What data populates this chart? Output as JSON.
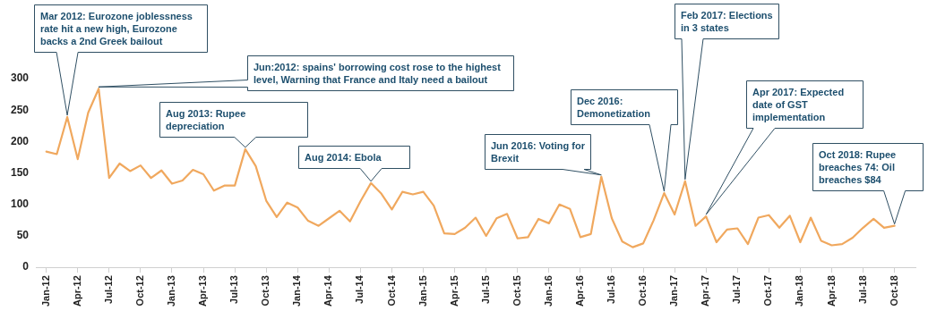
{
  "chart_data": {
    "type": "line",
    "x": [
      "2012-01",
      "2012-02",
      "2012-03",
      "2012-04",
      "2012-05",
      "2012-06",
      "2012-07",
      "2012-08",
      "2012-09",
      "2012-10",
      "2012-11",
      "2012-12",
      "2013-01",
      "2013-02",
      "2013-03",
      "2013-04",
      "2013-05",
      "2013-06",
      "2013-07",
      "2013-08",
      "2013-09",
      "2013-10",
      "2013-11",
      "2013-12",
      "2014-01",
      "2014-02",
      "2014-03",
      "2014-04",
      "2014-05",
      "2014-06",
      "2014-07",
      "2014-08",
      "2014-09",
      "2014-10",
      "2014-11",
      "2014-12",
      "2015-01",
      "2015-02",
      "2015-03",
      "2015-04",
      "2015-05",
      "2015-06",
      "2015-07",
      "2015-08",
      "2015-09",
      "2015-10",
      "2015-11",
      "2015-12",
      "2016-01",
      "2016-02",
      "2016-03",
      "2016-04",
      "2016-05",
      "2016-06",
      "2016-07",
      "2016-08",
      "2016-09",
      "2016-10",
      "2016-11",
      "2016-12",
      "2017-01",
      "2017-02",
      "2017-03",
      "2017-04",
      "2017-05",
      "2017-06",
      "2017-07",
      "2017-08",
      "2017-09",
      "2017-10",
      "2017-11",
      "2017-12",
      "2018-01",
      "2018-02",
      "2018-03",
      "2018-04",
      "2018-05",
      "2018-06",
      "2018-07",
      "2018-08",
      "2018-09",
      "2018-10"
    ],
    "series": [
      {
        "color": "#f0a85e",
        "values": [
          184,
          180,
          239,
          172,
          246,
          284,
          142,
          165,
          153,
          162,
          142,
          154,
          133,
          138,
          155,
          148,
          122,
          130,
          130,
          188,
          161,
          106,
          80,
          103,
          95,
          74,
          66,
          78,
          90,
          73,
          105,
          134,
          117,
          92,
          120,
          116,
          120,
          98,
          54,
          53,
          63,
          79,
          50,
          78,
          85,
          46,
          48,
          77,
          70,
          100,
          93,
          48,
          53,
          144,
          78,
          41,
          32,
          38,
          75,
          118,
          84,
          137,
          66,
          81,
          40,
          60,
          62,
          37,
          79,
          83,
          63,
          82,
          40,
          79,
          42,
          35,
          37,
          47,
          63,
          77,
          63,
          66
        ]
      }
    ],
    "xlim": [
      "2011-12",
      "2018-12"
    ],
    "xticks": [
      {
        "value": "2012-01",
        "label": "Jan-12"
      },
      {
        "value": "2012-04",
        "label": "Apr-12"
      },
      {
        "value": "2012-07",
        "label": "Jul-12"
      },
      {
        "value": "2012-10",
        "label": "Oct-12"
      },
      {
        "value": "2013-01",
        "label": "Jan-13"
      },
      {
        "value": "2013-04",
        "label": "Apr-13"
      },
      {
        "value": "2013-07",
        "label": "Jul-13"
      },
      {
        "value": "2013-10",
        "label": "Oct-13"
      },
      {
        "value": "2014-01",
        "label": "Jan-14"
      },
      {
        "value": "2014-04",
        "label": "Apr-14"
      },
      {
        "value": "2014-07",
        "label": "Jul-14"
      },
      {
        "value": "2014-10",
        "label": "Oct-14"
      },
      {
        "value": "2015-01",
        "label": "Jan-15"
      },
      {
        "value": "2015-04",
        "label": "Apr-15"
      },
      {
        "value": "2015-07",
        "label": "Jul-15"
      },
      {
        "value": "2015-10",
        "label": "Oct-15"
      },
      {
        "value": "2016-01",
        "label": "Jan-16"
      },
      {
        "value": "2016-04",
        "label": "Apr-16"
      },
      {
        "value": "2016-07",
        "label": "Jul-16"
      },
      {
        "value": "2016-10",
        "label": "Oct-16"
      },
      {
        "value": "2017-01",
        "label": "Jan-17"
      },
      {
        "value": "2017-04",
        "label": "Apr-17"
      },
      {
        "value": "2017-07",
        "label": "Jul-17"
      },
      {
        "value": "2017-10",
        "label": "Oct-17"
      },
      {
        "value": "2018-01",
        "label": "Jan-18"
      },
      {
        "value": "2018-04",
        "label": "Apr-18"
      },
      {
        "value": "2018-07",
        "label": "Jul-18"
      },
      {
        "value": "2018-10",
        "label": "Oct-18"
      }
    ],
    "ylim": [
      0,
      300
    ],
    "yticks": [
      0,
      50,
      100,
      150,
      200,
      250,
      300
    ],
    "marker": "none",
    "line_style": "solid",
    "grid": false,
    "legend": false,
    "annotations": [
      {
        "text": "Mar 2012: Eurozone joblessness rate hit a new high, Eurozone backs a 2nd Greek bailout",
        "x": "2012-03",
        "y": 239
      },
      {
        "text": "Jun:2012: spains' borrowing cost rose to the highest level, Warning that France and Italy need a bailout",
        "x": "2012-06",
        "y": 284
      },
      {
        "text": "Aug 2013: Rupee depreciation",
        "x": "2013-08",
        "y": 188
      },
      {
        "text": "Aug 2014: Ebola",
        "x": "2014-08",
        "y": 134
      },
      {
        "text": "Jun 2016: Voting for Brexit",
        "x": "2016-06",
        "y": 144
      },
      {
        "text": "Dec 2016: Demonetization",
        "x": "2016-12",
        "y": 118
      },
      {
        "text": "Feb 2017: Elections in 3 states",
        "x": "2017-02",
        "y": 137
      },
      {
        "text": "Apr 2017: Expected date of GST implementation",
        "x": "2017-04",
        "y": 81
      },
      {
        "text": "Oct 2018: Rupee breaches 74: Oil breaches $84",
        "x": "2018-10",
        "y": 66
      }
    ]
  }
}
